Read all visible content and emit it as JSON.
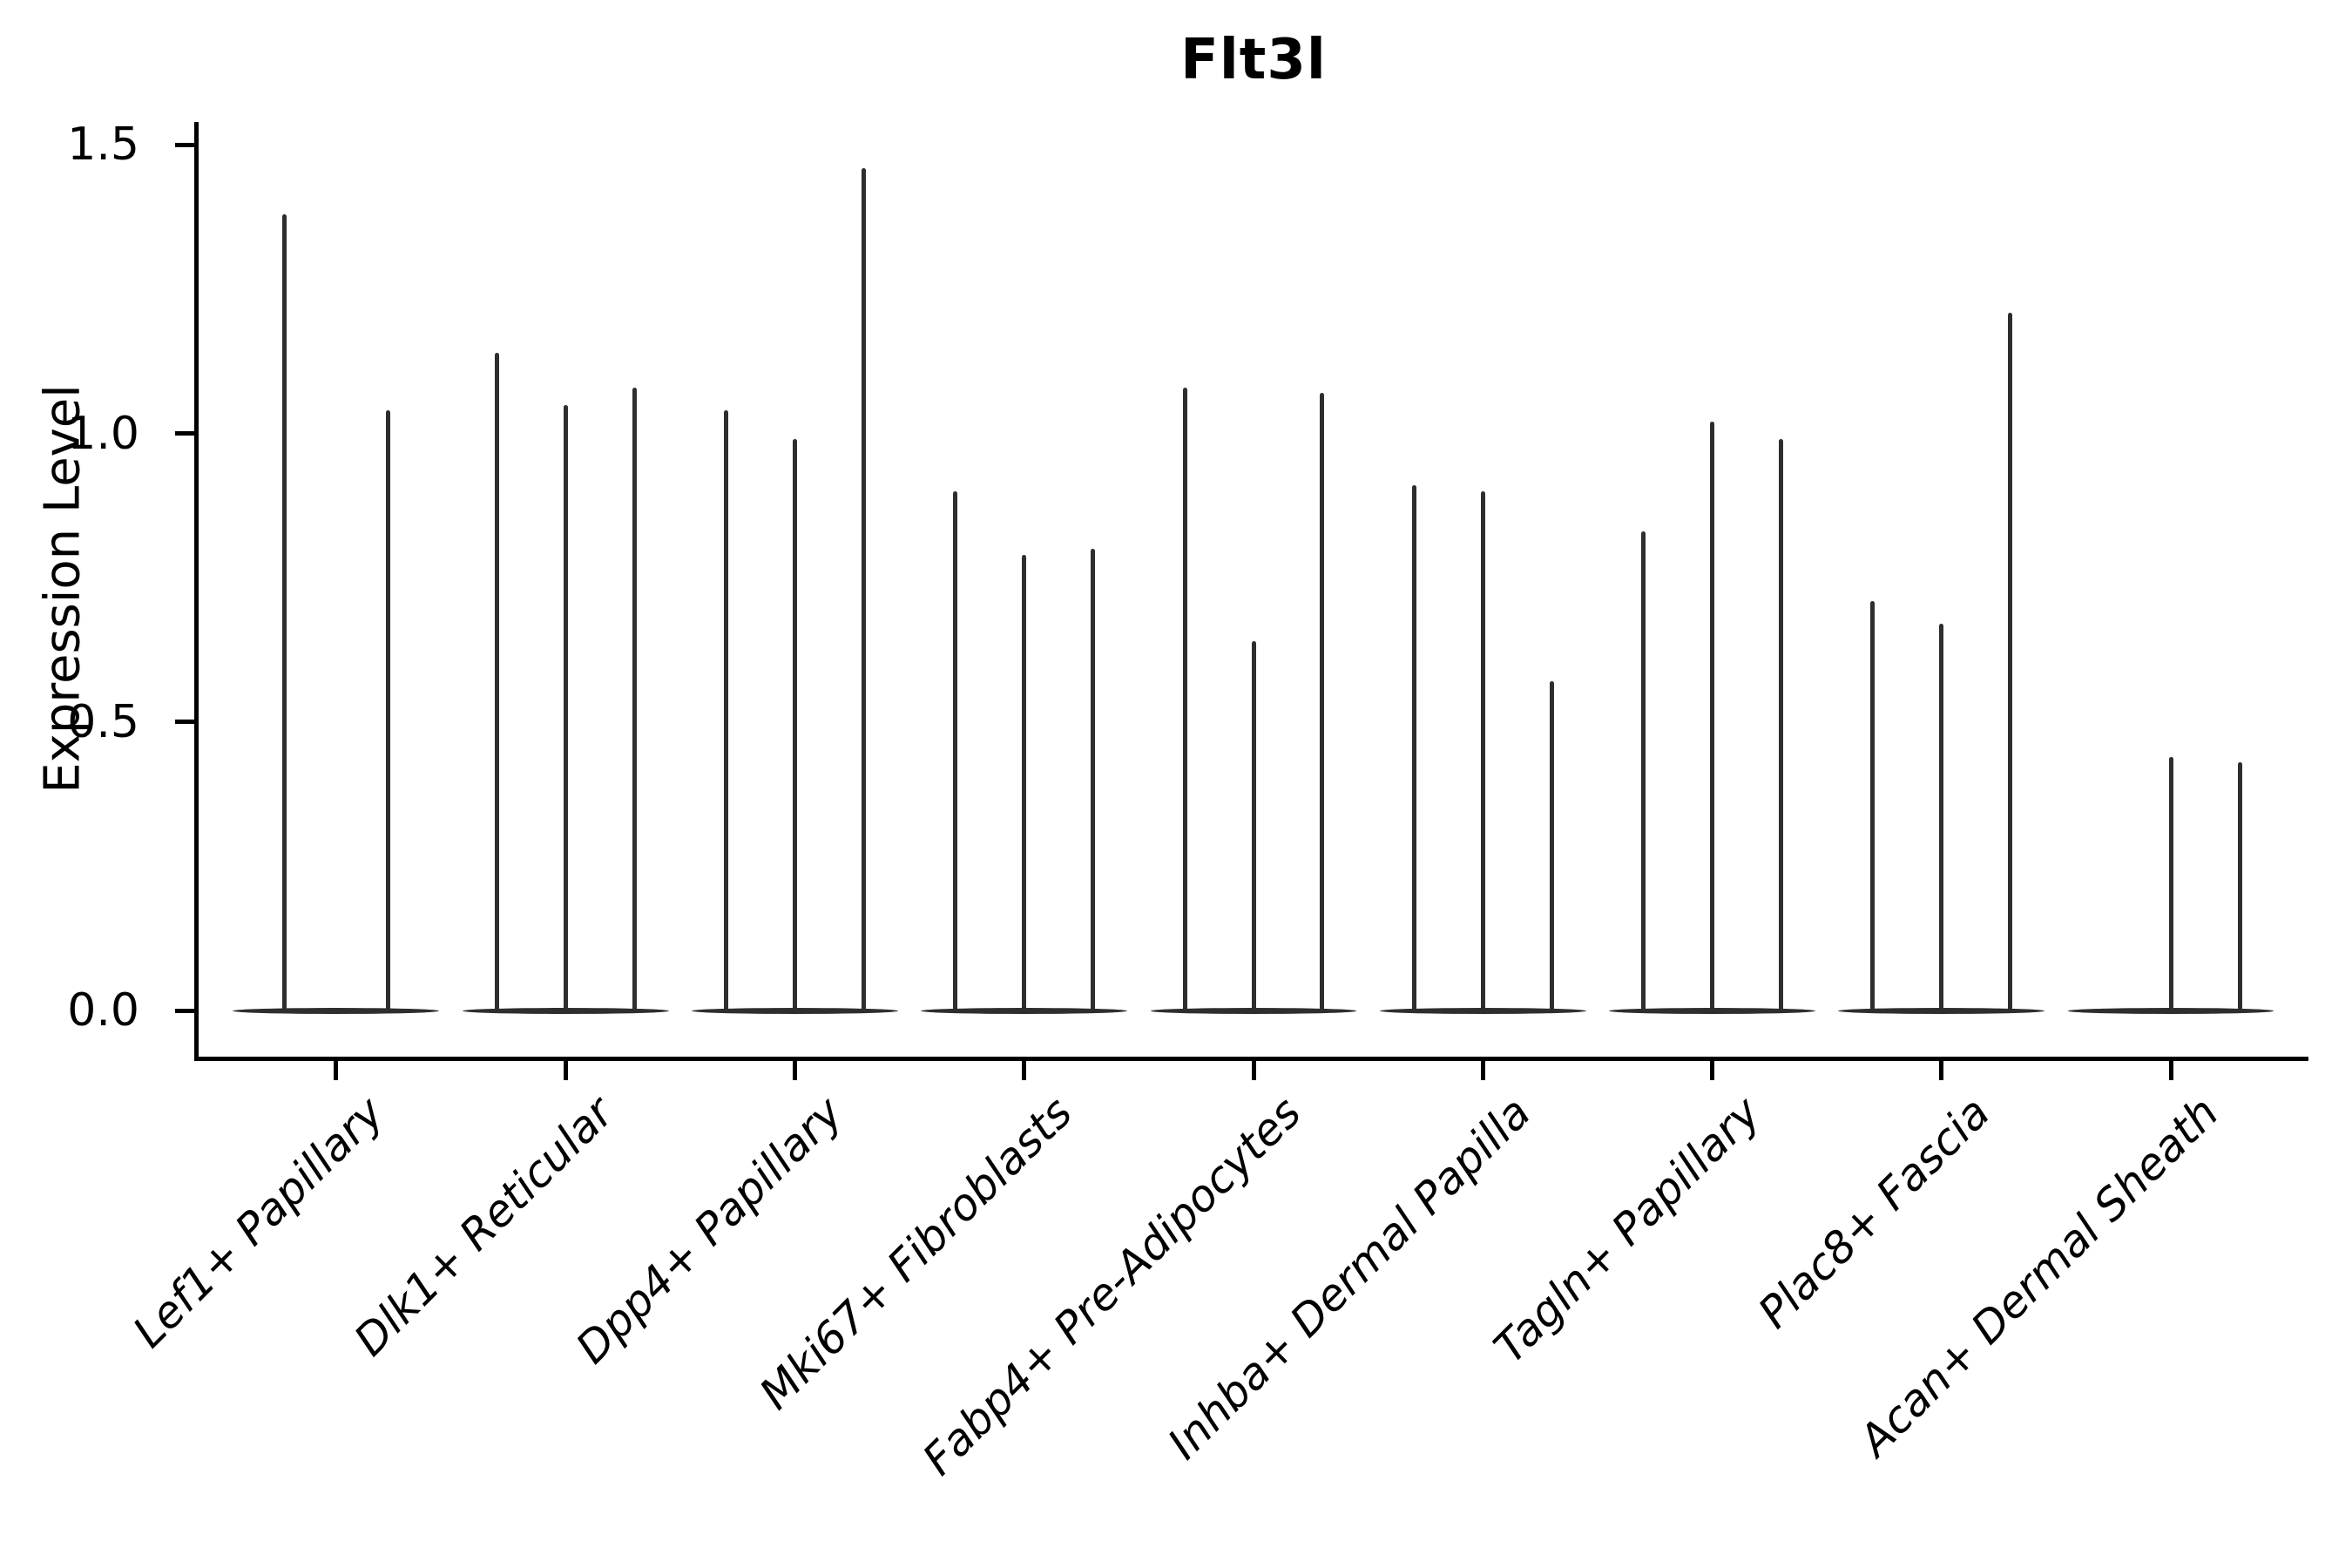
{
  "chart_data": {
    "type": "violin",
    "title": "Flt3l",
    "ylabel": "Expression Level",
    "xlabel": "",
    "grid": false,
    "legend": "none",
    "ylim": [
      -0.08,
      1.54
    ],
    "yticks": [
      0.0,
      0.5,
      1.0,
      1.5
    ],
    "ytick_labels": [
      "0.0",
      "0.5",
      "1.0",
      "1.5"
    ],
    "categories": [
      "Lef1+ Papillary",
      "Dlk1+ Reticular",
      "Dpp4+ Papillary",
      "Mki67+ Fibroblasts",
      "Fabp4+ Pre-Adipocytes",
      "Inhba+ Dermal Papilla",
      "Tagln+ Papillary",
      "Plac8+ Fascia",
      "Acan+ Dermal Sheath"
    ],
    "series": [
      {
        "category": "Lef1+ Papillary",
        "violin_peak_values": [
          1.38,
          1.04
        ]
      },
      {
        "category": "Dlk1+ Reticular",
        "violin_peak_values": [
          1.14,
          1.05,
          1.08
        ]
      },
      {
        "category": "Dpp4+ Papillary",
        "violin_peak_values": [
          1.04,
          0.99,
          1.46
        ]
      },
      {
        "category": "Mki67+ Fibroblasts",
        "violin_peak_values": [
          0.9,
          0.79,
          0.8
        ]
      },
      {
        "category": "Fabp4+ Pre-Adipocytes",
        "violin_peak_values": [
          1.08,
          0.64,
          1.07
        ]
      },
      {
        "category": "Inhba+ Dermal Papilla",
        "violin_peak_values": [
          0.91,
          0.9,
          0.57
        ]
      },
      {
        "category": "Tagln+ Papillary",
        "violin_peak_values": [
          0.83,
          1.02,
          0.99
        ]
      },
      {
        "category": "Plac8+ Fascia",
        "violin_peak_values": [
          0.71,
          0.67,
          1.21
        ]
      },
      {
        "category": "Acan+ Dermal Sheath",
        "violin_peak_values": [
          0.0,
          0.44,
          0.43
        ]
      }
    ],
    "colors": {
      "violin": "#2e2e2e",
      "axis": "#000000",
      "text": "#000000",
      "background": "#ffffff"
    }
  }
}
